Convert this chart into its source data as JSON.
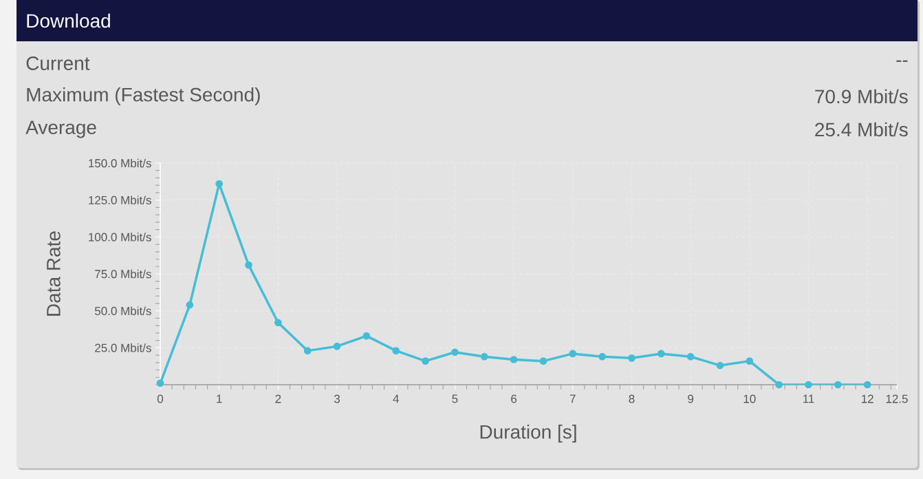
{
  "chart_data": {
    "type": "line",
    "title": "Download",
    "annotations": [
      "Current",
      "--",
      "Maximum (Fastest Second)",
      "70.9 Mbit/s",
      "Average",
      "25.4 Mbit/s"
    ],
    "xlabel": "Duration [s]",
    "ylabel": "Data Rate",
    "x": [
      0,
      0.5,
      1,
      1.5,
      2,
      2.5,
      3,
      3.5,
      4,
      4.5,
      5,
      5.5,
      6,
      6.5,
      7,
      7.5,
      8,
      8.5,
      9,
      9.5,
      10,
      10.5,
      11,
      11.5,
      12
    ],
    "values": [
      1,
      54,
      136,
      81,
      42,
      23,
      26,
      33,
      23,
      16,
      22,
      19,
      17,
      16,
      21,
      19,
      18,
      21,
      19,
      13,
      16,
      0,
      0,
      0,
      0
    ],
    "color": "#45bdd6",
    "xlim": [
      0,
      12.5
    ],
    "xticks": [
      0,
      1,
      2,
      3,
      4,
      5,
      6,
      7,
      8,
      9,
      10,
      11,
      12,
      12.5
    ],
    "ylim": [
      0,
      150
    ],
    "yticks": [
      {
        "value": 25,
        "label": "25.0 Mbit/s"
      },
      {
        "value": 50,
        "label": "50.0 Mbit/s"
      },
      {
        "value": 75,
        "label": "75.0 Mbit/s"
      },
      {
        "value": 100,
        "label": "100.0 Mbit/s"
      },
      {
        "value": 125,
        "label": "125.0 Mbit/s"
      },
      {
        "value": 150,
        "label": "150.0 Mbit/s"
      }
    ],
    "grid": true,
    "marker": "circle",
    "line_style": "solid"
  }
}
